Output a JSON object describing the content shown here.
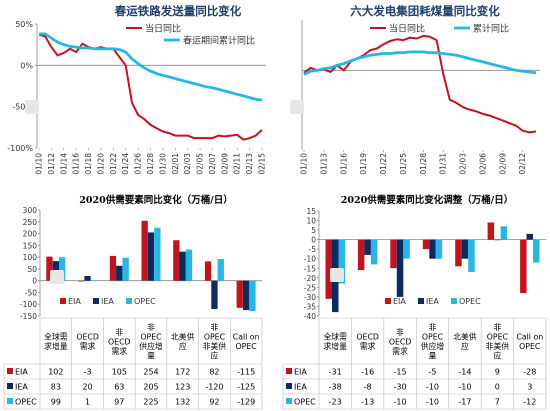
{
  "colors": {
    "red": "#c0151e",
    "blue": "#29b6e6",
    "navy": "#0f2a5e"
  },
  "chart_data": [
    {
      "type": "line",
      "title": "春运铁路发送量同比变化",
      "x": [
        "01/10",
        "01/11",
        "01/12",
        "01/13",
        "01/14",
        "01/15",
        "01/16",
        "01/17",
        "01/18",
        "01/19",
        "01/20",
        "01/21",
        "01/22",
        "01/23",
        "01/24",
        "01/25",
        "01/26",
        "01/27",
        "01/28",
        "01/29",
        "01/30",
        "01/31",
        "02/01",
        "02/02",
        "02/03",
        "02/04",
        "02/05",
        "02/06",
        "02/07",
        "02/08",
        "02/09",
        "02/10",
        "02/11",
        "02/12",
        "02/13",
        "02/14",
        "02/15"
      ],
      "x_tick_labels": [
        "01/10",
        "01/12",
        "01/14",
        "01/16",
        "01/18",
        "01/20",
        "01/22",
        "01/24",
        "01/26",
        "01/28",
        "01/30",
        "02/01",
        "02/03",
        "02/05",
        "02/07",
        "02/09",
        "02/11",
        "02/13",
        "02/15"
      ],
      "y_tick_labels": [
        "50%",
        "0%",
        "-50%",
        "-100%"
      ],
      "ylim": [
        -100,
        50
      ],
      "series": [
        {
          "name": "当日同比",
          "values": [
            37,
            35,
            22,
            12,
            15,
            20,
            16,
            26,
            22,
            20,
            22,
            20,
            20,
            10,
            0,
            -45,
            -60,
            -65,
            -72,
            -76,
            -80,
            -82,
            -85,
            -85,
            -85,
            -88,
            -88,
            -88,
            -88,
            -85,
            -86,
            -85,
            -84,
            -90,
            -88,
            -85,
            -78
          ]
        },
        {
          "name": "春运期间累计同比",
          "values": [
            38,
            38,
            33,
            28,
            25,
            23,
            22,
            21,
            21,
            20,
            20,
            20,
            20,
            19,
            16,
            8,
            2,
            -3,
            -7,
            -10,
            -12,
            -14,
            -16,
            -18,
            -20,
            -22,
            -24,
            -26,
            -27,
            -29,
            -31,
            -33,
            -35,
            -37,
            -39,
            -41,
            -42
          ]
        }
      ]
    },
    {
      "type": "line",
      "title": "六大发电集团耗煤量同比变化",
      "x": [
        "01/10",
        "01/11",
        "01/12",
        "01/13",
        "01/14",
        "01/15",
        "01/16",
        "01/17",
        "01/18",
        "01/19",
        "01/20",
        "01/21",
        "01/22",
        "01/23",
        "01/24",
        "01/25",
        "01/26",
        "01/27",
        "01/28",
        "01/29",
        "01/30",
        "01/31",
        "02/01",
        "02/02",
        "02/03",
        "02/04",
        "02/05",
        "02/06",
        "02/07",
        "02/08",
        "02/09",
        "02/10",
        "02/11",
        "02/12",
        "02/13",
        "02/14"
      ],
      "x_tick_labels": [
        "01/10",
        "01/13",
        "01/16",
        "01/19",
        "01/22",
        "01/25",
        "01/28",
        "01/31",
        "02/03",
        "02/06",
        "02/09",
        "02/12"
      ],
      "series": [
        {
          "name": "当日同比",
          "values": [
            -3,
            3,
            0,
            1,
            -2,
            6,
            0,
            10,
            14,
            18,
            24,
            26,
            31,
            35,
            37,
            36,
            39,
            38,
            41,
            40,
            36,
            -4,
            -35,
            -39,
            -44,
            -47,
            -49,
            -52,
            -54,
            -57,
            -60,
            -63,
            -66,
            -72,
            -74,
            -73
          ]
        },
        {
          "name": "累计同比",
          "values": [
            -5,
            -1,
            0,
            2,
            3,
            6,
            8,
            11,
            14,
            16,
            18,
            19,
            20,
            20,
            21,
            21,
            22,
            22,
            22,
            21,
            21,
            20,
            19,
            18,
            16,
            14,
            12,
            10,
            8,
            6,
            4,
            2,
            0,
            -1,
            -2,
            -3
          ]
        }
      ]
    },
    {
      "type": "bar",
      "title": "2020供需要素同比变化（万桶/日）",
      "categories": [
        "全球需求增量",
        "OECD需求",
        "非OECD需求",
        "非OPEC供应增量",
        "北美供应",
        "非OPEC非美供应",
        "Call on OPEC"
      ],
      "y_tick_labels": [
        "300",
        "250",
        "200",
        "150",
        "100",
        "50",
        "0",
        "-50",
        "-100",
        "-150"
      ],
      "ylim": [
        -150,
        300
      ],
      "series": [
        {
          "name": "EIA",
          "values": [
            102,
            -3,
            105,
            254,
            172,
            82,
            -115
          ]
        },
        {
          "name": "IEA",
          "values": [
            83,
            20,
            63,
            205,
            123,
            -120,
            -125
          ]
        },
        {
          "name": "OPEC",
          "values": [
            99,
            1,
            97,
            225,
            132,
            92,
            -129
          ]
        }
      ]
    },
    {
      "type": "bar",
      "title": "2020供需要素同比变化调整（万桶/日）",
      "categories": [
        "全球需求增量",
        "OECD需求",
        "非OECD需求",
        "非OPEC供应增量",
        "北美供应",
        "非OPEC非美供应",
        "Call on OPEC"
      ],
      "y_tick_labels": [
        "15",
        "10",
        "5",
        "0",
        "-5",
        "-10",
        "-15",
        "-20",
        "-25",
        "-30",
        "-35",
        "-40"
      ],
      "ylim": [
        -40,
        15
      ],
      "series": [
        {
          "name": "EIA",
          "values": [
            -31,
            -16,
            -15,
            -5,
            -14,
            9,
            -28
          ]
        },
        {
          "name": "IEA",
          "values": [
            -38,
            -8,
            -30,
            -10,
            -10,
            0,
            3
          ]
        },
        {
          "name": "OPEC",
          "values": [
            -23,
            -13,
            -10,
            -10,
            -17,
            7,
            -12
          ]
        }
      ]
    }
  ],
  "tables": [
    {
      "headers": [
        "全球需求增量",
        "OECD需求",
        "非OECD需求",
        "非OPEC供应增量",
        "北美供应",
        "非OPEC非美供应",
        "Call on OPEC"
      ],
      "header_lines": [
        [
          "全球需",
          "求增量"
        ],
        [
          "OECD",
          "需求"
        ],
        [
          "非",
          "OECD",
          "需求"
        ],
        [
          "非",
          "OPEC",
          "供应增",
          "量"
        ],
        [
          "北美供",
          "应"
        ],
        [
          "非",
          "OPEC",
          "非美供",
          "应"
        ],
        [
          "Call on",
          "OPEC"
        ]
      ],
      "rows": [
        {
          "label": "EIA",
          "cells": [
            "102",
            "-3",
            "105",
            "254",
            "172",
            "82",
            "-115"
          ]
        },
        {
          "label": "IEA",
          "cells": [
            "83",
            "20",
            "63",
            "205",
            "123",
            "-120",
            "-125"
          ]
        },
        {
          "label": "OPEC",
          "cells": [
            "99",
            "1",
            "97",
            "225",
            "132",
            "92",
            "-129"
          ]
        }
      ]
    },
    {
      "headers": [
        "全球需求增量",
        "OECD需求",
        "非OECD需求",
        "非OPEC供应增量",
        "北美供应",
        "非OPEC非美供应",
        "Call on OPEC"
      ],
      "header_lines": [
        [
          "全球需",
          "求增量"
        ],
        [
          "OECD",
          "需求"
        ],
        [
          "非",
          "OECD",
          "需求"
        ],
        [
          "非",
          "OPEC",
          "供应增",
          "量"
        ],
        [
          "北美供",
          "应"
        ],
        [
          "非",
          "OPEC",
          "非美供",
          "应"
        ],
        [
          "Call on",
          "OPEC"
        ]
      ],
      "rows": [
        {
          "label": "EIA",
          "cells": [
            "-31",
            "-16",
            "-15",
            "-5",
            "-14",
            "9",
            "-28"
          ]
        },
        {
          "label": "IEA",
          "cells": [
            "-38",
            "-8",
            "-30",
            "-10",
            "-10",
            "0",
            "3"
          ]
        },
        {
          "label": "OPEC",
          "cells": [
            "-23",
            "-13",
            "-10",
            "-10",
            "-17",
            "7",
            "-12"
          ]
        }
      ]
    }
  ]
}
